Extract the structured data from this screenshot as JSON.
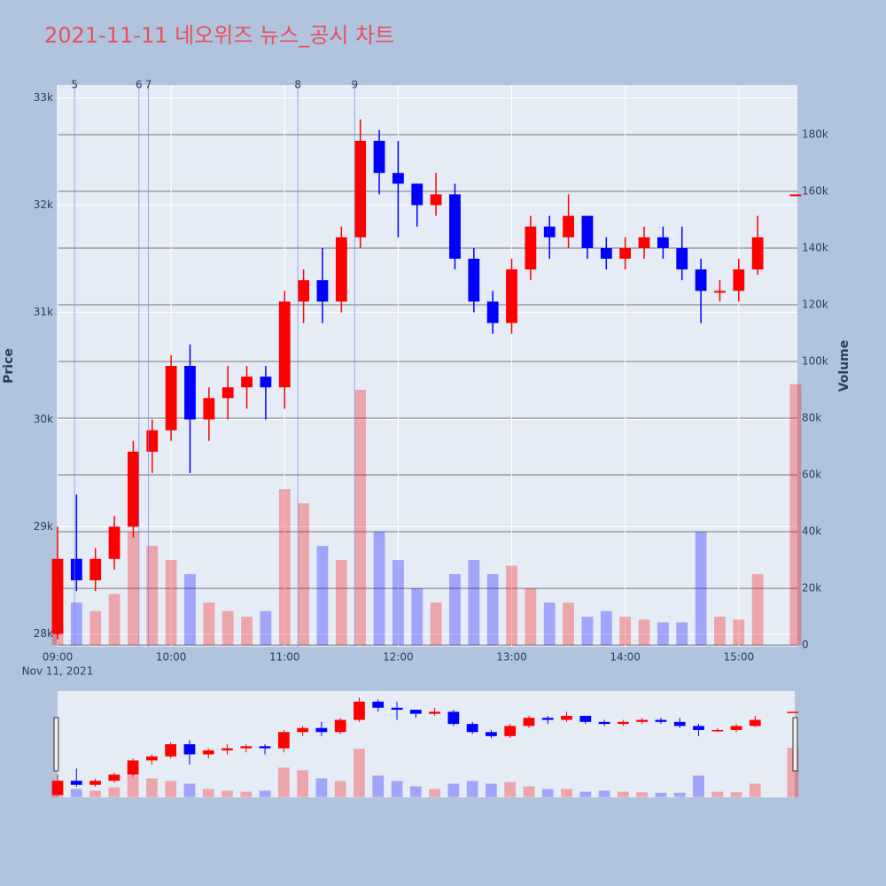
{
  "chart_data": {
    "type": "candlestick",
    "title": "2021-11-11 네오위즈 뉴스_공시 차트",
    "x": [
      "2021-11-11 09:00",
      "2021-11-11 09:10",
      "2021-11-11 09:20",
      "2021-11-11 09:30",
      "2021-11-11 09:40",
      "2021-11-11 09:50",
      "2021-11-11 10:00",
      "2021-11-11 10:10",
      "2021-11-11 10:20",
      "2021-11-11 10:30",
      "2021-11-11 10:40",
      "2021-11-11 10:50",
      "2021-11-11 11:00",
      "2021-11-11 11:10",
      "2021-11-11 11:20",
      "2021-11-11 11:30",
      "2021-11-11 11:40",
      "2021-11-11 11:50",
      "2021-11-11 12:00",
      "2021-11-11 12:10",
      "2021-11-11 12:20",
      "2021-11-11 12:30",
      "2021-11-11 12:40",
      "2021-11-11 12:50",
      "2021-11-11 13:00",
      "2021-11-11 13:10",
      "2021-11-11 13:20",
      "2021-11-11 13:30",
      "2021-11-11 13:40",
      "2021-11-11 13:50",
      "2021-11-11 14:00",
      "2021-11-11 14:10",
      "2021-11-11 14:20",
      "2021-11-11 14:30",
      "2021-11-11 14:40",
      "2021-11-11 14:50",
      "2021-11-11 15:00",
      "2021-11-11 15:10",
      "2021-11-11 15:30"
    ],
    "open": [
      28000,
      28700,
      28500,
      28700,
      29000,
      29700,
      29900,
      30500,
      30000,
      30200,
      30300,
      30400,
      30300,
      31100,
      31300,
      31100,
      31700,
      32600,
      32300,
      32200,
      32000,
      32100,
      31500,
      31100,
      30900,
      31400,
      31800,
      31700,
      31900,
      31600,
      31500,
      31600,
      31700,
      31600,
      31400,
      31200,
      31200,
      31400,
      32100
    ],
    "high": [
      29000,
      29300,
      28800,
      29100,
      29800,
      30000,
      30600,
      30700,
      30300,
      30500,
      30500,
      30500,
      31200,
      31400,
      31600,
      31800,
      32800,
      32700,
      32600,
      32200,
      32300,
      32200,
      31600,
      31200,
      31500,
      31900,
      31900,
      32100,
      31900,
      31700,
      31700,
      31800,
      31800,
      31800,
      31500,
      31300,
      31500,
      31900,
      32100
    ],
    "low": [
      27950,
      28400,
      28400,
      28600,
      28900,
      29500,
      29800,
      29500,
      29800,
      30000,
      30100,
      30000,
      30100,
      30900,
      30900,
      31000,
      31600,
      32100,
      31700,
      31800,
      31900,
      31400,
      31000,
      30800,
      30800,
      31300,
      31500,
      31600,
      31500,
      31400,
      31400,
      31500,
      31500,
      31300,
      30900,
      31100,
      31100,
      31350,
      32100
    ],
    "close": [
      28700,
      28500,
      28700,
      29000,
      29700,
      29900,
      30500,
      30000,
      30200,
      30300,
      30400,
      30300,
      31100,
      31300,
      31100,
      31700,
      32600,
      32300,
      32200,
      32000,
      32100,
      31500,
      31100,
      30900,
      31400,
      31800,
      31700,
      31900,
      31600,
      31500,
      31600,
      31700,
      31600,
      31400,
      31200,
      31200,
      31400,
      31700,
      32100
    ],
    "volume": [
      20000,
      15000,
      12000,
      18000,
      40000,
      35000,
      30000,
      25000,
      15000,
      12000,
      10000,
      12000,
      55000,
      50000,
      35000,
      30000,
      90000,
      40000,
      30000,
      20000,
      15000,
      25000,
      30000,
      25000,
      28000,
      20000,
      15000,
      15000,
      10000,
      12000,
      10000,
      9000,
      8000,
      8000,
      40000,
      10000,
      9000,
      25000,
      92000
    ],
    "increasing_color": "#ff0000",
    "decreasing_color": "#0000ff",
    "ylabel": "Price",
    "y2label": "Volume",
    "xlim": [
      "2021-11-11 09:00",
      "2021-11-11 15:31"
    ],
    "xticks": [
      {
        "value": "2021-11-11 09:00",
        "label": "09:00"
      },
      {
        "value": "2021-11-11 10:00",
        "label": "10:00"
      },
      {
        "value": "2021-11-11 11:00",
        "label": "11:00"
      },
      {
        "value": "2021-11-11 12:00",
        "label": "12:00"
      },
      {
        "value": "2021-11-11 13:00",
        "label": "13:00"
      },
      {
        "value": "2021-11-11 14:00",
        "label": "14:00"
      },
      {
        "value": "2021-11-11 15:00",
        "label": "15:00"
      }
    ],
    "x_date_label": "Nov 11, 2021",
    "ylim": [
      27880,
      33120
    ],
    "yticks": [
      {
        "value": 28000,
        "label": "28k"
      },
      {
        "value": 29000,
        "label": "29k"
      },
      {
        "value": 30000,
        "label": "30k"
      },
      {
        "value": 31000,
        "label": "31k"
      },
      {
        "value": 32000,
        "label": "32k"
      },
      {
        "value": 33000,
        "label": "33k"
      }
    ],
    "y2lim": [
      -600,
      197500
    ],
    "y2ticks": [
      0,
      {
        "value": 20000,
        "label": "20k"
      },
      {
        "value": 40000,
        "label": "40k"
      },
      {
        "value": 60000,
        "label": "60k"
      },
      {
        "value": 80000,
        "label": "80k"
      },
      {
        "value": 100000,
        "label": "100k"
      },
      {
        "value": 120000,
        "label": "120k"
      },
      {
        "value": 140000,
        "label": "140k"
      },
      {
        "value": 160000,
        "label": "160k"
      },
      {
        "value": 180000,
        "label": "180k"
      }
    ],
    "events": [
      {
        "x": "2021-11-11 09:09",
        "label": "5"
      },
      {
        "x": "2021-11-11 09:43",
        "label": "6"
      },
      {
        "x": "2021-11-11 09:48",
        "label": "7"
      },
      {
        "x": "2021-11-11 11:07",
        "label": "8"
      },
      {
        "x": "2021-11-11 11:37",
        "label": "9"
      }
    ],
    "grid": true,
    "rangeslider": true
  }
}
